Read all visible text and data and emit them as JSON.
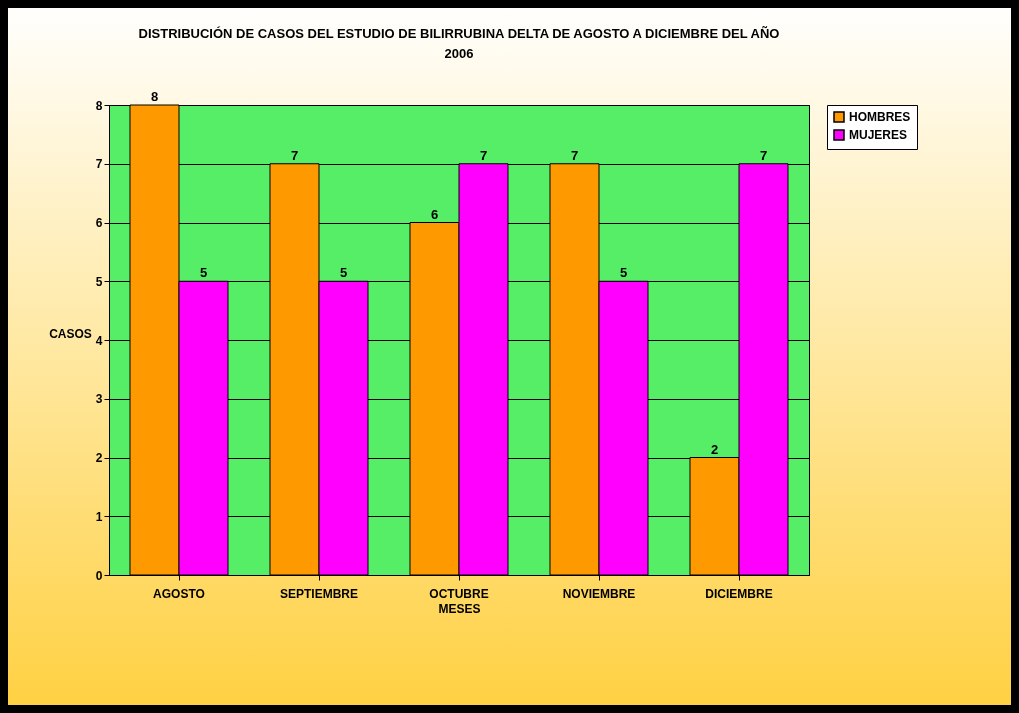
{
  "chart_data": {
    "type": "bar",
    "title": "DISTRIBUCIÓN DE CASOS DEL ESTUDIO DE BILIRRUBINA DELTA DE AGOSTO A DICIEMBRE DEL AÑO 2006",
    "xlabel": "MESES",
    "ylabel": "CASOS",
    "categories": [
      "AGOSTO",
      "SEPTIEMBRE",
      "OCTUBRE",
      "NOVIEMBRE",
      "DICIEMBRE"
    ],
    "series": [
      {
        "name": "HOMBRES",
        "color": "#ff9900",
        "values": [
          8,
          7,
          6,
          7,
          2
        ]
      },
      {
        "name": "MUJERES",
        "color": "#ff00ff",
        "values": [
          5,
          5,
          7,
          5,
          7
        ]
      }
    ],
    "ylim": [
      0,
      8
    ],
    "yticks": [
      0,
      1,
      2,
      3,
      4,
      5,
      6,
      7,
      8
    ],
    "grid": "y",
    "legend": "right",
    "data_labels": true
  }
}
